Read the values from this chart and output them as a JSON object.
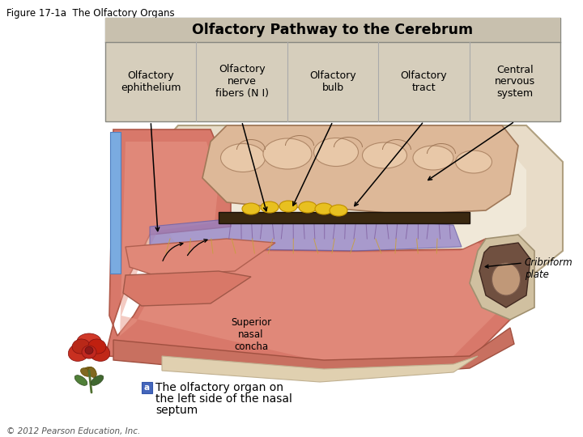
{
  "figure_title": "Figure 17-1a  The Olfactory Organs",
  "box_title": "Olfactory Pathway to the Cerebrum",
  "table_headers": [
    "Olfactory\nephithelium",
    "Olfactory\nnerve\nfibers (N I)",
    "Olfactory\nbulb",
    "Olfactory\ntract",
    "Central\nnervous\nsystem"
  ],
  "caption_letter": "a",
  "caption_text": " The olfactory organ on\n the left side of the nasal\n septum",
  "copyright": "© 2012 Pearson Education, Inc.",
  "cribriform_label": "Cribriform\nplate",
  "superior_label": "Superior\nnasal\nconcha",
  "bg_color": "#ffffff",
  "box_bg": "#d6cebc",
  "box_title_bg": "#c8c0ae",
  "box_border": "#888880",
  "table_border": "#aaaaaa",
  "fig_width": 7.2,
  "fig_height": 5.4,
  "dpi": 100
}
